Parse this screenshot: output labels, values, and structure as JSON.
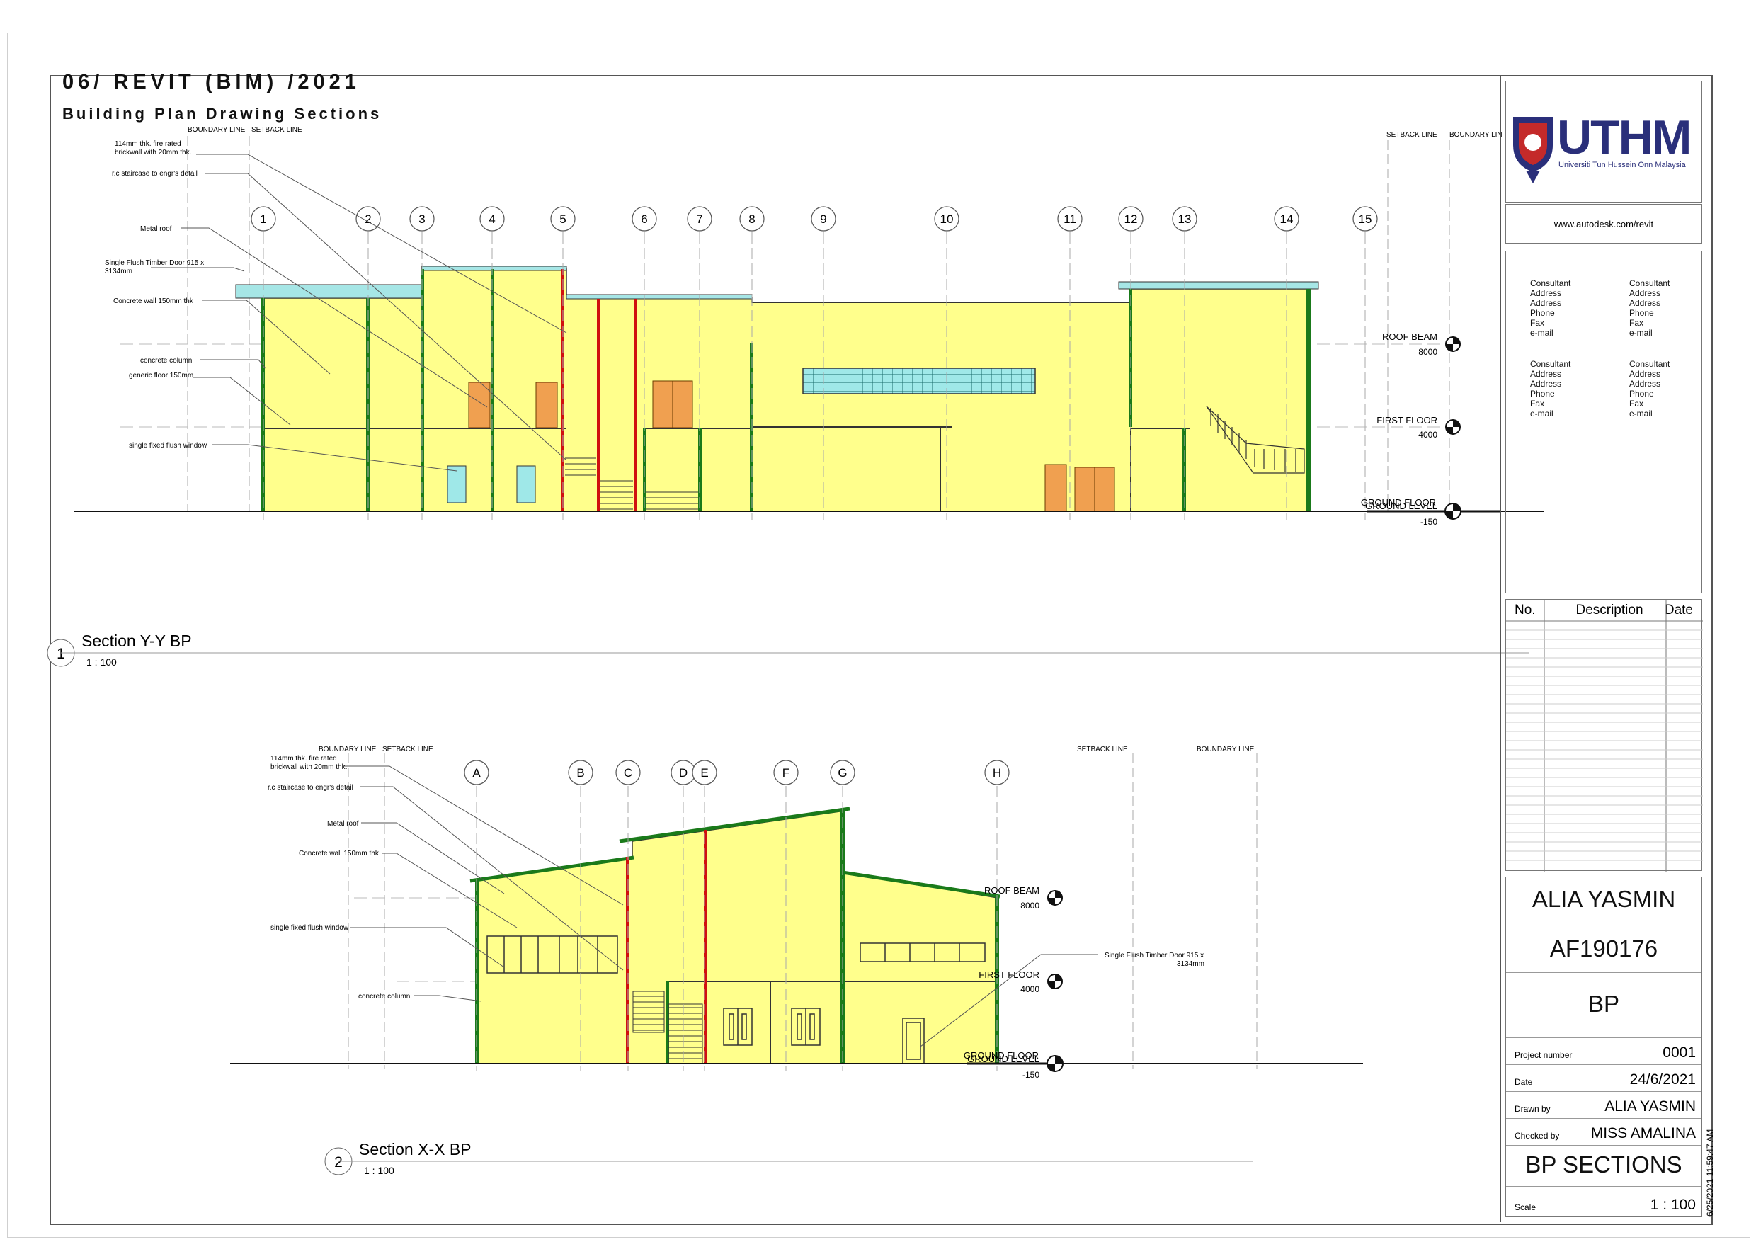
{
  "header": {
    "title": "06/ REVIT (BIM) /2021",
    "subtitle": "Building Plan Drawing Sections"
  },
  "section_yy": {
    "number": "1",
    "title": "Section Y-Y BP",
    "scale": "1 : 100",
    "boundary_left": "BOUNDARY LINE",
    "setback_left": "SETBACK LINE",
    "setback_right": "SETBACK LINE",
    "boundary_right": "BOUNDARY LIN",
    "grids": [
      "1",
      "2",
      "3",
      "4",
      "5",
      "6",
      "7",
      "8",
      "9",
      "10",
      "11",
      "12",
      "13",
      "14",
      "15"
    ],
    "levels": {
      "roof_beam": "ROOF BEAM",
      "roof_beam_val": "8000",
      "first_floor": "FIRST FLOOR",
      "first_floor_val": "4000",
      "ground_overlap": "GROUND FLOOR",
      "ground": "GROUND LEVEL",
      "ground_val": "-150"
    },
    "notes": [
      "114mm thk. fire rated",
      "brickwall with 20mm thk.",
      "r.c staircase to engr's detail",
      "Metal roof",
      "Single Flush Timber Door 915 x",
      "3134mm",
      "Concrete wall 150mm thk",
      "concrete column",
      "generic floor 150mm",
      "single fixed flush window"
    ]
  },
  "section_xx": {
    "number": "2",
    "title": "Section X-X BP",
    "scale": "1 : 100",
    "boundary_left": "BOUNDARY LINE",
    "setback_left": "SETBACK LINE",
    "setback_right": "SETBACK LINE",
    "boundary_right": "BOUNDARY LINE",
    "grids": [
      "A",
      "B",
      "C",
      "D",
      "E",
      "F",
      "G",
      "H"
    ],
    "levels": {
      "roof_beam": "ROOF BEAM",
      "roof_beam_val": "8000",
      "first_floor": "FIRST FLOOR",
      "first_floor_val": "4000",
      "ground_overlap": "GROUND FLOOR",
      "ground": "GROUND LEVEL",
      "ground_val": "-150"
    },
    "notes": [
      "114mm thk. fire rated",
      "brickwall with 20mm thk.",
      "r.c staircase to engr's detail",
      "Metal roof",
      "Concrete wall 150mm thk",
      "single fixed flush window",
      "concrete column",
      "Single Flush Timber Door 915 x",
      "3134mm"
    ]
  },
  "titleblock": {
    "logo_text": "UTHM",
    "logo_sub": "Universiti Tun Hussein Onn Malaysia",
    "url": "www.autodesk.com/revit",
    "consultant_lines": [
      "Consultant",
      "Address",
      "Address",
      "Phone",
      "Fax",
      "e-mail"
    ],
    "revisions": {
      "no": "No.",
      "description": "Description",
      "date": "Date"
    },
    "student_name": "ALIA YASMIN",
    "student_id": "AF190176",
    "code": "BP",
    "project_number_label": "Project number",
    "project_number": "0001",
    "date_label": "Date",
    "date": "24/6/2021",
    "drawn_by_label": "Drawn by",
    "drawn_by": "ALIA YASMIN",
    "checked_by_label": "Checked by",
    "checked_by": "MISS AMALINA",
    "sheet_title": "BP SECTIONS",
    "scale_label": "Scale",
    "scale": "1 : 100",
    "timestamp": "6/25/2021 11:59:47 AM"
  },
  "colors": {
    "wall_fill": "#ffff8c",
    "column_green": "#1a7a1a",
    "column_red": "#d01010",
    "door": "#f0a050",
    "glass": "#9fe8e8",
    "roof_cyan": "#a6e6e6"
  }
}
